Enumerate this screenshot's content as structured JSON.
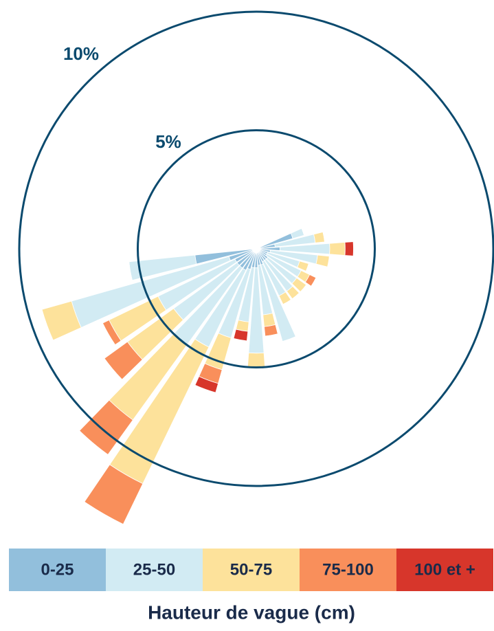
{
  "chart_data": {
    "type": "polar-bar",
    "categories": [
      null,
      null,
      null,
      null,
      null,
      null,
      null,
      null,
      null,
      null,
      null,
      null,
      null,
      null,
      null,
      null,
      null,
      null,
      null,
      null
    ],
    "series": [
      {
        "name": "0-25",
        "color": "#92bfdc",
        "values": [
          1.6,
          0.8,
          1.0,
          0.6,
          0.5,
          0.5,
          0.6,
          0.6,
          0.6,
          0.7,
          0.7,
          0.8,
          0.8,
          0.9,
          1.0,
          1.0,
          1.0,
          1.0,
          1.2,
          2.6
        ]
      },
      {
        "name": "25-50",
        "color": "#d2ebf3",
        "values": [
          0.5,
          1.7,
          2.1,
          2.0,
          1.4,
          1.6,
          1.5,
          1.6,
          1.6,
          3.36,
          2.1,
          3.6,
          2.3,
          3.0,
          3.6,
          4.0,
          3.3,
          3.6,
          6.9,
          2.8
        ]
      },
      {
        "name": "50-75",
        "color": "#fde29b",
        "values": [
          0,
          0.4,
          0.65,
          0.5,
          0.4,
          0.4,
          0.5,
          0.4,
          0.4,
          0,
          0.5,
          0.6,
          0.4,
          1.4,
          6.4,
          3.9,
          2.4,
          2.3,
          1.3,
          0
        ]
      },
      {
        "name": "75-100",
        "color": "#f98f5b",
        "values": [
          0,
          0,
          0,
          0,
          0,
          0.3,
          0,
          0,
          0,
          0,
          0.4,
          0,
          0,
          0.6,
          1.9,
          1.8,
          1.2,
          0.3,
          0,
          0
        ]
      },
      {
        "name": "100 et +",
        "color": "#d7362b",
        "values": [
          0,
          0,
          0.35,
          0,
          0,
          0,
          0,
          0,
          0,
          0,
          0,
          0,
          0.4,
          0.4,
          0,
          0,
          0,
          0,
          0,
          0
        ]
      }
    ],
    "rlim": [
      0,
      10
    ],
    "rticks": [
      {
        "value": 5,
        "label": "5%"
      },
      {
        "value": 10,
        "label": "10%"
      }
    ],
    "ring_color": "#0b4a6e",
    "legend_title": "Hauteur de vague (cm)"
  }
}
